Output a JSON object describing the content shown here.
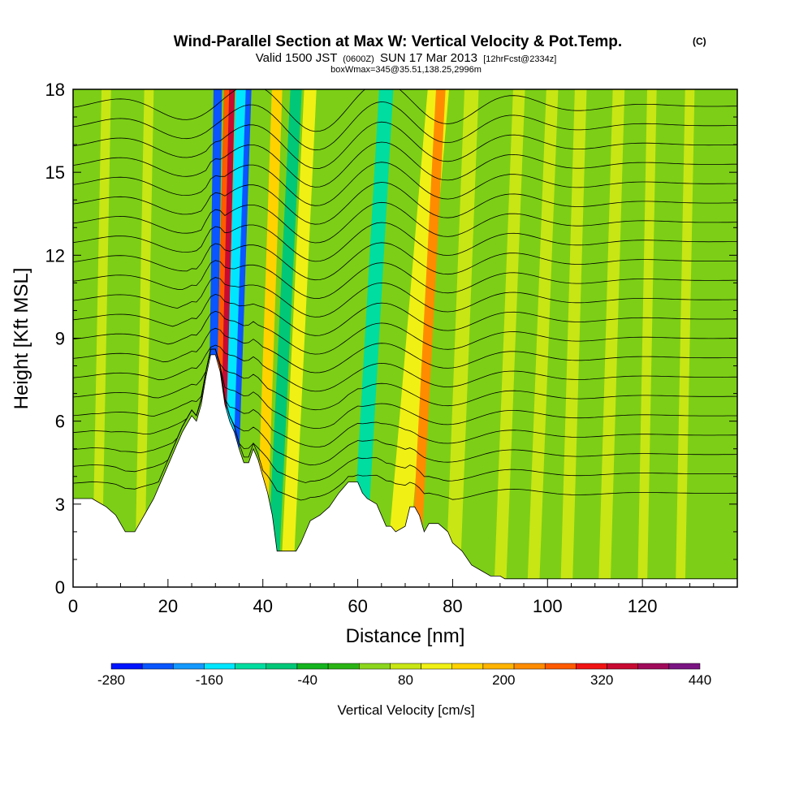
{
  "chart_data": {
    "type": "heatmap",
    "title": "Wind-Parallel Section at Max W: Vertical Velocity & Pot.Temp.",
    "title_mark": "(C)",
    "subtitle_parts": [
      "Valid 1500 JST",
      "(0600Z)",
      "SUN 17 Mar 2013",
      "[12hrFcst@2334z]"
    ],
    "subtitle2": "boxWmax=345@35.51,138.25,2996m",
    "xlabel": "Distance [nm]",
    "ylabel": "Height [Kft MSL]",
    "xlim": [
      0,
      140
    ],
    "ylim": [
      0,
      18
    ],
    "xticks": [
      "0",
      "20",
      "40",
      "60",
      "80",
      "100",
      "120"
    ],
    "yticks": [
      "0",
      "3",
      "6",
      "9",
      "12",
      "15",
      "18"
    ],
    "colorbar": {
      "label": "Vertical Velocity [cm/s]",
      "tick_labels": [
        "-280",
        "-160",
        "-40",
        "80",
        "200",
        "320",
        "440"
      ],
      "colors": [
        "#0014ff",
        "#0a55ff",
        "#1499ff",
        "#00e6ff",
        "#00dda0",
        "#00c878",
        "#14b41e",
        "#2ab414",
        "#8cd61e",
        "#c8e614",
        "#f0f014",
        "#ffd200",
        "#ffb400",
        "#ff8c00",
        "#ff5a00",
        "#f01414",
        "#c80a32",
        "#a00a5a",
        "#7a1482"
      ]
    },
    "terrain_kft": [
      [
        0,
        3.2
      ],
      [
        4,
        3.2
      ],
      [
        7,
        2.9
      ],
      [
        9,
        2.6
      ],
      [
        11,
        2.0
      ],
      [
        13,
        2.0
      ],
      [
        15,
        2.6
      ],
      [
        17,
        3.2
      ],
      [
        19,
        4.0
      ],
      [
        21,
        4.8
      ],
      [
        23,
        5.6
      ],
      [
        25,
        6.2
      ],
      [
        26,
        6.0
      ],
      [
        27,
        6.6
      ],
      [
        28,
        7.6
      ],
      [
        29,
        8.4
      ],
      [
        30,
        8.4
      ],
      [
        31,
        7.8
      ],
      [
        32,
        6.6
      ],
      [
        33,
        6.0
      ],
      [
        34,
        5.6
      ],
      [
        35,
        5.0
      ],
      [
        36,
        4.5
      ],
      [
        37,
        4.5
      ],
      [
        38,
        5.0
      ],
      [
        39,
        4.6
      ],
      [
        40,
        4.0
      ],
      [
        41,
        3.4
      ],
      [
        42,
        2.6
      ],
      [
        43,
        1.3
      ],
      [
        44,
        1.3
      ],
      [
        47,
        1.3
      ],
      [
        48,
        1.6
      ],
      [
        49,
        2.0
      ],
      [
        50,
        2.4
      ],
      [
        52,
        2.6
      ],
      [
        54,
        2.9
      ],
      [
        56,
        3.4
      ],
      [
        58,
        3.8
      ],
      [
        60,
        3.8
      ],
      [
        61,
        3.4
      ],
      [
        62,
        3.2
      ],
      [
        64,
        3.0
      ],
      [
        66,
        2.2
      ],
      [
        67,
        2.2
      ],
      [
        68,
        2.0
      ],
      [
        70,
        2.2
      ],
      [
        71,
        2.9
      ],
      [
        72,
        2.9
      ],
      [
        73,
        2.6
      ],
      [
        74,
        2.0
      ],
      [
        75,
        2.3
      ],
      [
        77,
        2.3
      ],
      [
        79,
        2.0
      ],
      [
        80,
        1.6
      ],
      [
        82,
        1.3
      ],
      [
        84,
        0.8
      ],
      [
        86,
        0.6
      ],
      [
        88,
        0.4
      ],
      [
        90,
        0.4
      ],
      [
        91,
        0.3
      ],
      [
        140,
        0.3
      ]
    ],
    "velocity_bands": [
      {
        "x_bottom": 29.0,
        "x_top": 30.5,
        "width": 1.8,
        "w": -280
      },
      {
        "x_bottom": 30.0,
        "x_top": 32.5,
        "width": 1.4,
        "w": 260
      },
      {
        "x_bottom": 31.0,
        "x_top": 33.5,
        "width": 1.2,
        "w": 340
      },
      {
        "x_bottom": 32.5,
        "x_top": 35.5,
        "width": 2.4,
        "w": -200
      },
      {
        "x_bottom": 33.5,
        "x_top": 37.0,
        "width": 1.2,
        "w": -280
      },
      {
        "x_bottom": 39.5,
        "x_top": 43.0,
        "width": 2.2,
        "w": 140
      },
      {
        "x_bottom": 42.0,
        "x_top": 47.0,
        "width": 2.4,
        "w": -120
      },
      {
        "x_bottom": 45.0,
        "x_top": 50.0,
        "width": 2.6,
        "w": 110
      },
      {
        "x_bottom": 60.0,
        "x_top": 66.0,
        "width": 3.0,
        "w": -140
      },
      {
        "x_bottom": 68.0,
        "x_top": 77.0,
        "width": 4.5,
        "w": 110
      },
      {
        "x_bottom": 72.0,
        "x_top": 77.5,
        "width": 2.0,
        "w": 200
      },
      {
        "x_bottom": 80.0,
        "x_top": 84.0,
        "width": 3.0,
        "w": 60
      },
      {
        "x_bottom": 90.0,
        "x_top": 94.0,
        "width": 2.5,
        "w": 40
      },
      {
        "x_bottom": 97.0,
        "x_top": 101.0,
        "width": 2.5,
        "w": 40
      },
      {
        "x_bottom": 104.0,
        "x_top": 107.0,
        "width": 2.5,
        "w": 40
      },
      {
        "x_bottom": 112.0,
        "x_top": 115.0,
        "width": 2.5,
        "w": 40
      },
      {
        "x_bottom": 120.0,
        "x_top": 122.0,
        "width": 2.0,
        "w": 40
      },
      {
        "x_bottom": 128.0,
        "x_top": 130.0,
        "width": 2.0,
        "w": 40
      },
      {
        "x_bottom": 5.0,
        "x_top": 7.0,
        "width": 2.0,
        "w": 40
      },
      {
        "x_bottom": 14.0,
        "x_top": 16.0,
        "width": 2.0,
        "w": 40
      }
    ],
    "theta_levels_kft": [
      3.4,
      4.1,
      4.8,
      5.5,
      6.2,
      6.9,
      7.6,
      8.3,
      9.0,
      9.7,
      10.4,
      11.1,
      11.8,
      12.5,
      13.2,
      13.9,
      14.6,
      15.3,
      16.0,
      16.7,
      17.4
    ]
  }
}
